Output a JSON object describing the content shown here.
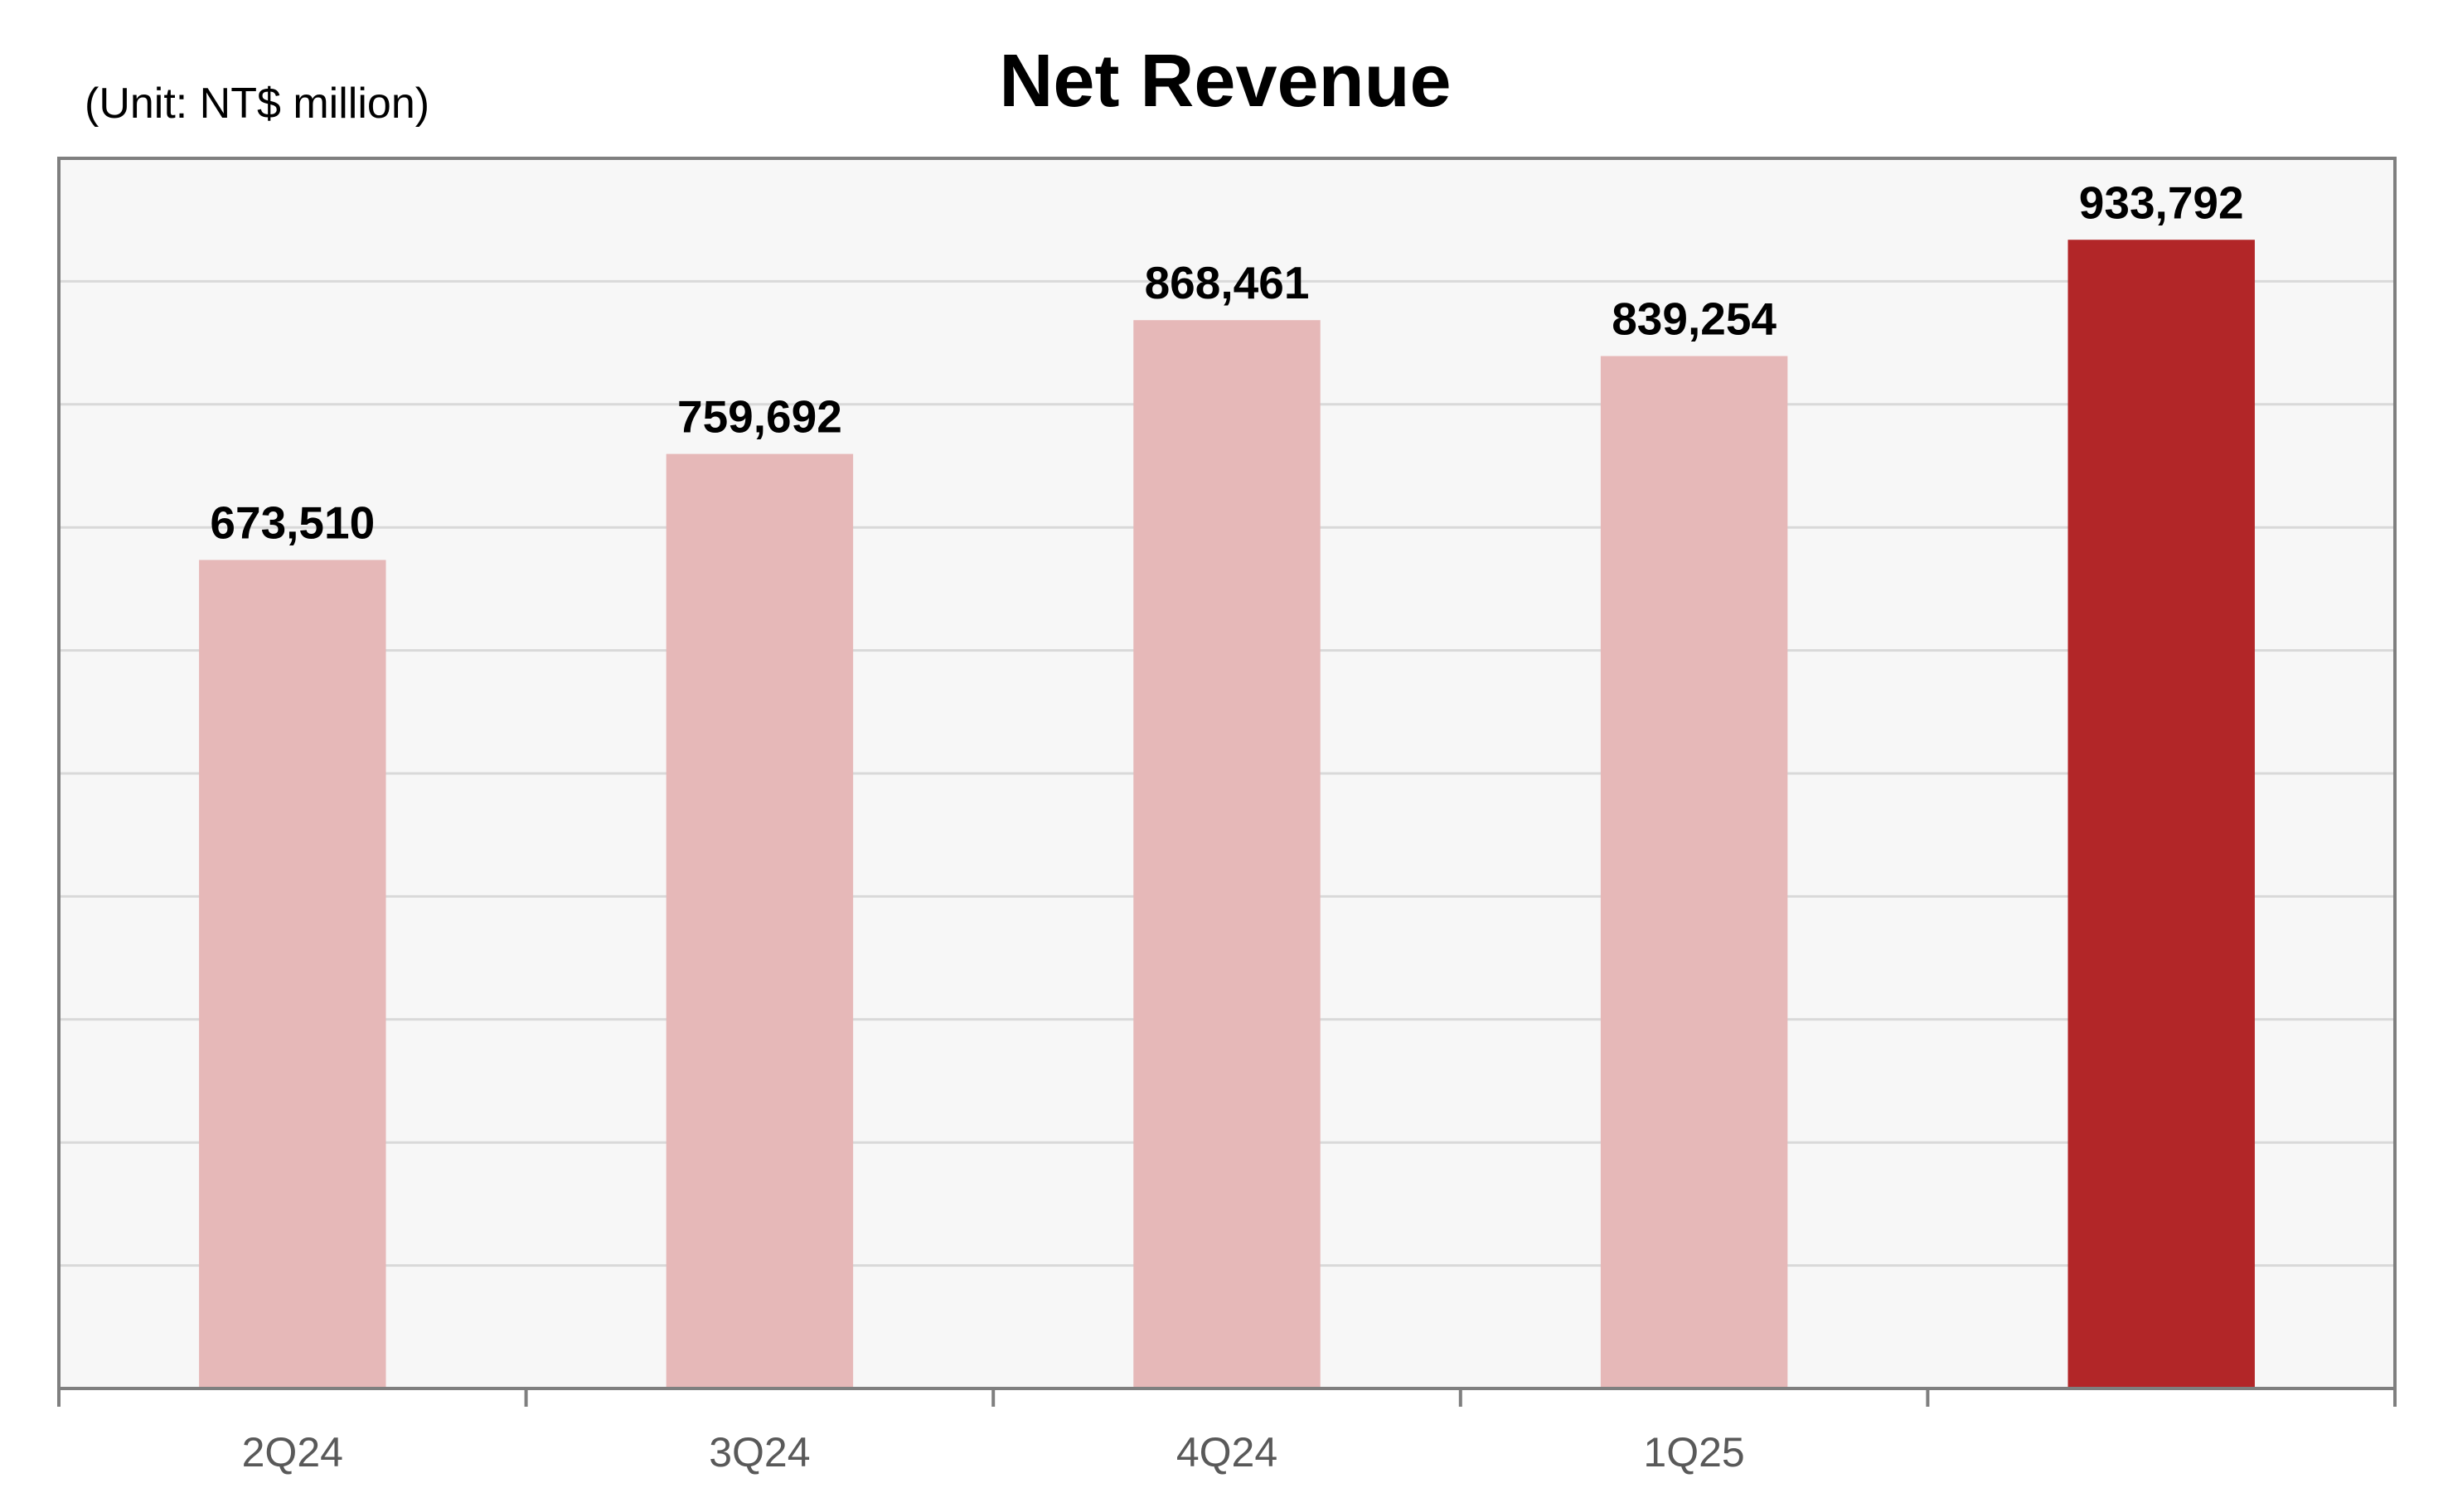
{
  "chart_data": {
    "type": "bar",
    "title": "Net Revenue",
    "unit_note": "(Unit: NT$ million)",
    "categories": [
      "2Q24",
      "3Q24",
      "4Q24",
      "1Q25",
      ""
    ],
    "values": [
      673510,
      759692,
      868461,
      839254,
      933792
    ],
    "value_labels": [
      "673,510",
      "759,692",
      "868,461",
      "839,254",
      "933,792"
    ],
    "ylim": [
      0,
      1000000
    ],
    "grid": true,
    "legend": "none",
    "colors": {
      "bar": "#e6b8b8",
      "highlight_bar": "#b22628",
      "plot_background": "#f7f7f7",
      "gridline": "#d9d9d9",
      "frame": "#7f7f7f"
    },
    "highlight_index": 4
  }
}
